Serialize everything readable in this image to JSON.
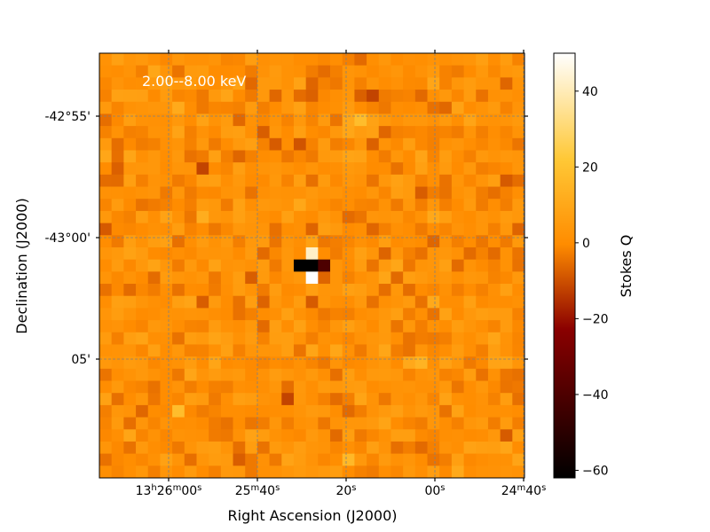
{
  "chart_data": {
    "type": "heatmap",
    "title": "",
    "annotation": "2.00--8.00 keV",
    "xlabel": "Right Ascension (J2000)",
    "ylabel": "Declination (J2000)",
    "x_ticks": [
      {
        "label": "13h26m00s",
        "parts": [
          {
            "t": "13"
          },
          {
            "t": "h",
            "sup": true
          },
          {
            "t": "26"
          },
          {
            "t": "m",
            "sup": true
          },
          {
            "t": "00"
          },
          {
            "t": "s",
            "sup": true
          }
        ]
      },
      {
        "label": "25m40s",
        "parts": [
          {
            "t": "25"
          },
          {
            "t": "m",
            "sup": true
          },
          {
            "t": "40"
          },
          {
            "t": "s",
            "sup": true
          }
        ]
      },
      {
        "label": "20s",
        "parts": [
          {
            "t": "20"
          },
          {
            "t": "s",
            "sup": true
          }
        ]
      },
      {
        "label": "00s",
        "parts": [
          {
            "t": "00"
          },
          {
            "t": "s",
            "sup": true
          }
        ]
      },
      {
        "label": "24m40s",
        "parts": [
          {
            "t": "24"
          },
          {
            "t": "m",
            "sup": true
          },
          {
            "t": "40"
          },
          {
            "t": "s",
            "sup": true
          }
        ]
      }
    ],
    "y_ticks": [
      "-42°55'",
      "-43°00'",
      "05'"
    ],
    "grid": true,
    "grid_color": "#808080",
    "colormap": "afmhot",
    "colorbar": {
      "label": "Stokes Q",
      "vmin": -62,
      "vmax": 50,
      "ticks": [
        40,
        20,
        0,
        -20,
        -40,
        -60
      ]
    },
    "grid_shape": [
      35,
      35
    ],
    "background_level_range": [
      -10,
      12
    ],
    "source": {
      "description": "bright compact source near center",
      "cells": [
        {
          "col": 16,
          "row": 17,
          "value": -62
        },
        {
          "col": 17,
          "row": 17,
          "value": -62
        },
        {
          "col": 18,
          "row": 17,
          "value": -40
        },
        {
          "col": 17,
          "row": 16,
          "value": 42
        },
        {
          "col": 17,
          "row": 18,
          "value": 50
        }
      ]
    },
    "notable_cells": [
      {
        "col": 8,
        "row": 9,
        "value": -12
      },
      {
        "col": 15,
        "row": 28,
        "value": -12
      },
      {
        "col": 22,
        "row": 3,
        "value": -12
      },
      {
        "col": 21,
        "row": 5,
        "value": 18
      },
      {
        "col": 6,
        "row": 29,
        "value": 18
      },
      {
        "col": 20,
        "row": 33,
        "value": 16
      },
      {
        "col": 8,
        "row": 13,
        "value": 12
      },
      {
        "col": 26,
        "row": 25,
        "value": 14
      }
    ]
  }
}
